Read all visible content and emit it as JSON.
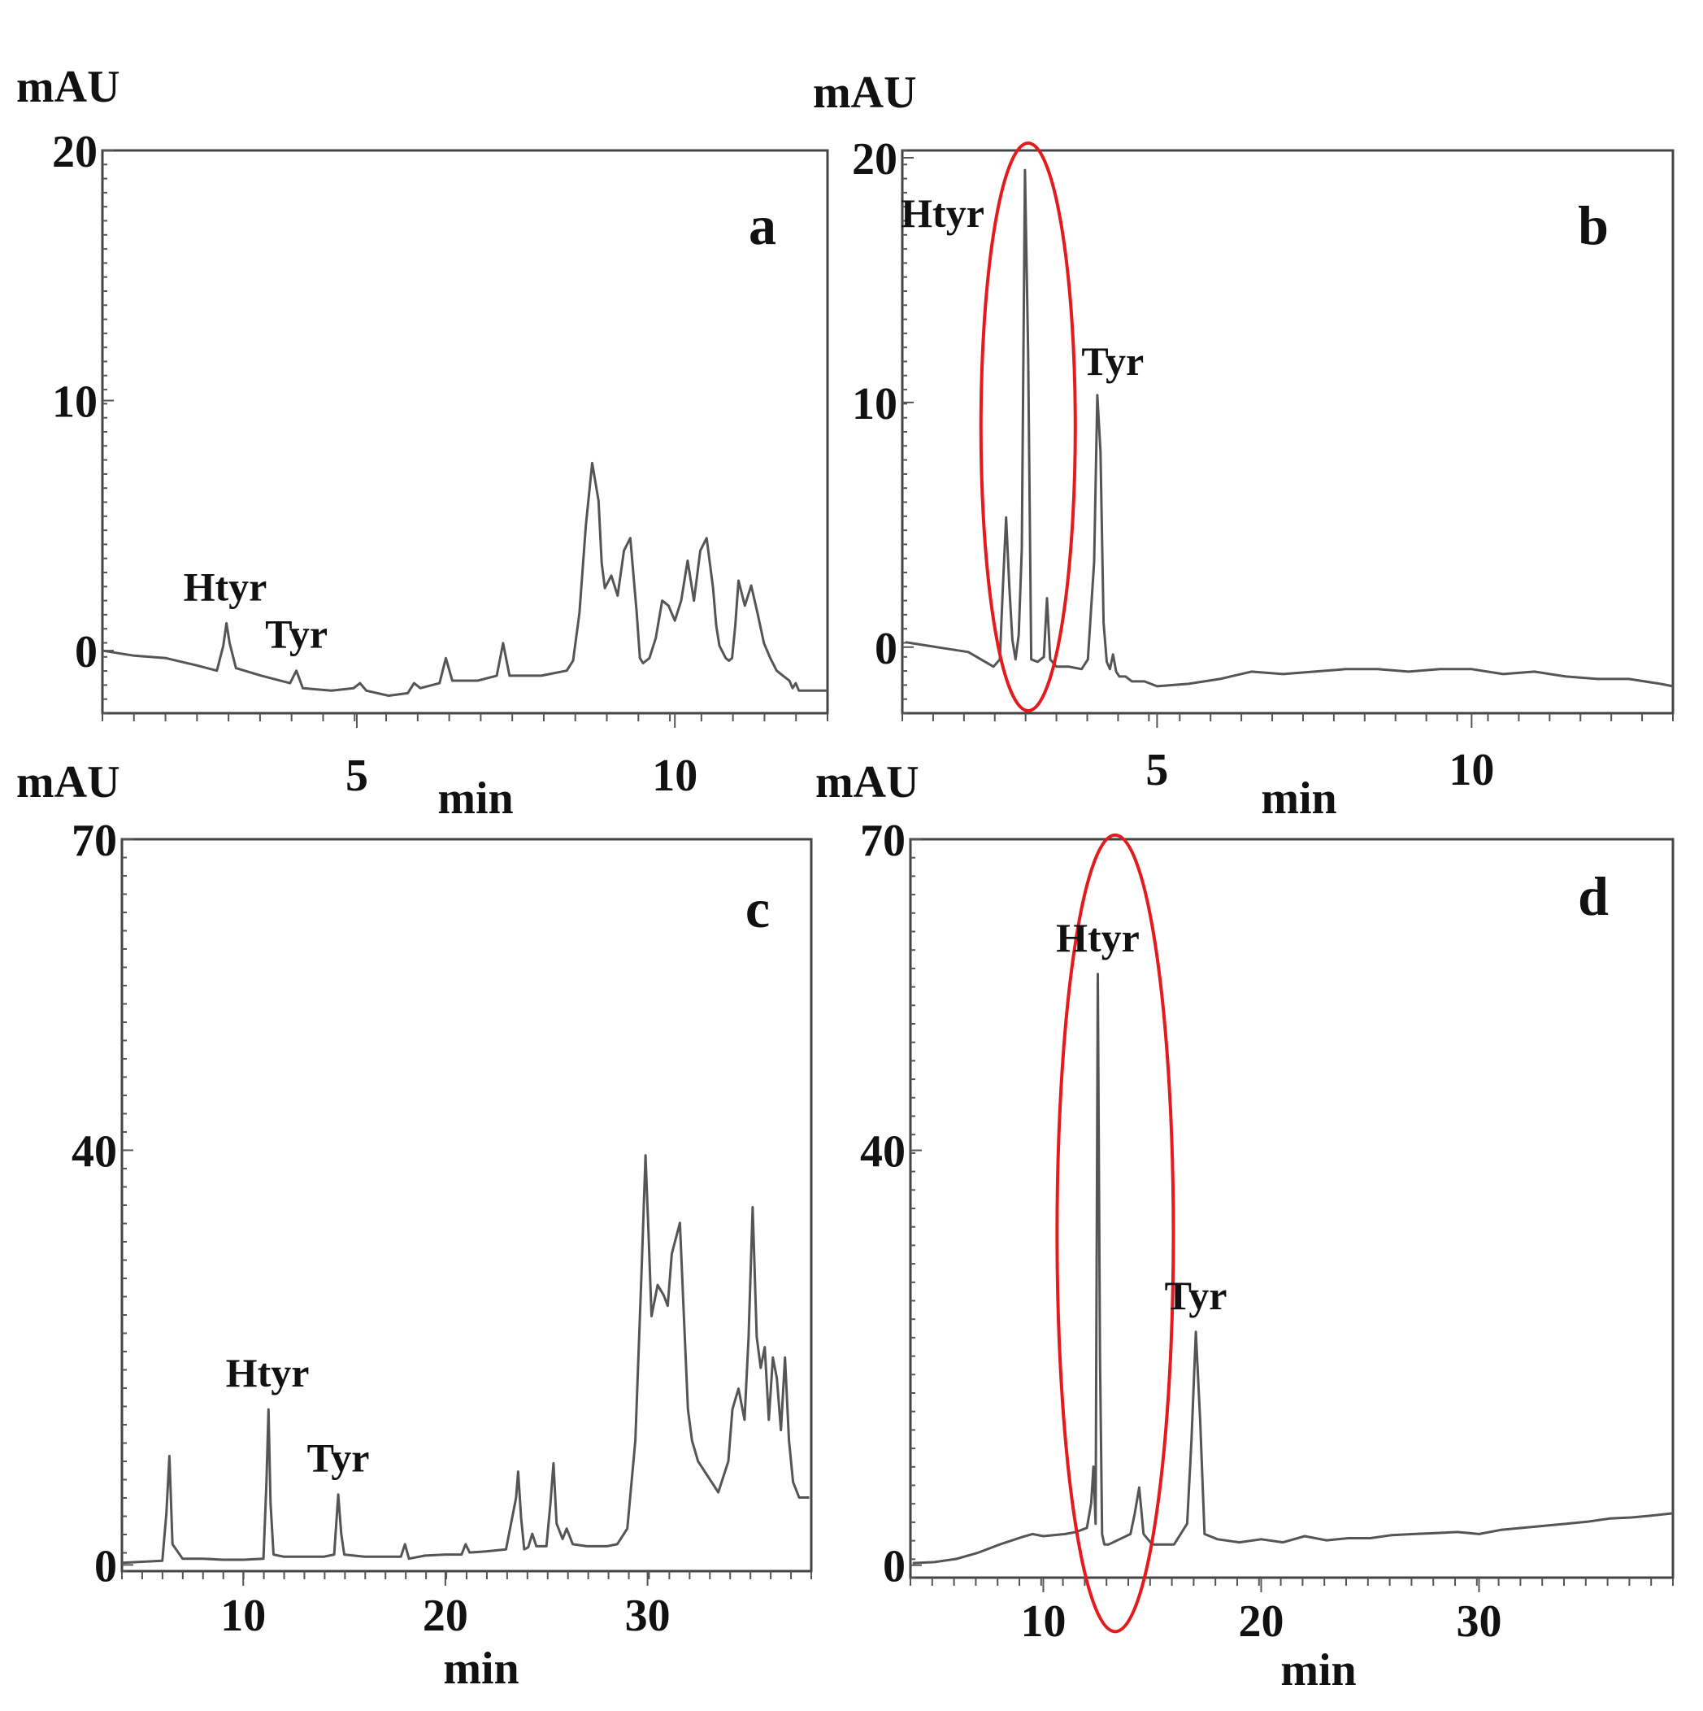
{
  "chart_data": [
    {
      "type": "line",
      "panel": "a",
      "ylabel": "mAU",
      "xlabel": "min",
      "xlim": [
        1,
        12.4
      ],
      "ylim": [
        -2.5,
        20
      ],
      "xticks": [
        5,
        10
      ],
      "yticks": [
        0,
        10,
        20
      ],
      "highlight": null,
      "peaks": [
        {
          "name": "Htyr",
          "x": 2.93,
          "y": 1.1
        },
        {
          "name": "Tyr",
          "x": 4.05,
          "y": -0.8
        }
      ],
      "series": [
        {
          "x": [
            1.0,
            1.5,
            2.0,
            2.5,
            2.8,
            2.9,
            2.95,
            3.0,
            3.1,
            3.5,
            3.95,
            4.05,
            4.15,
            4.6,
            4.95,
            5.05,
            5.15,
            5.5,
            5.8,
            5.9,
            6.0,
            6.3,
            6.4,
            6.5,
            6.9,
            7.2,
            7.3,
            7.4,
            7.6,
            7.9,
            8.3,
            8.4,
            8.5,
            8.6,
            8.7,
            8.8,
            8.85,
            8.9,
            9.0,
            9.1,
            9.2,
            9.3,
            9.4,
            9.45,
            9.5,
            9.6,
            9.7,
            9.8,
            9.9,
            10.0,
            10.1,
            10.2,
            10.3,
            10.4,
            10.5,
            10.6,
            10.65,
            10.7,
            10.8,
            10.85,
            10.9,
            10.95,
            11.0,
            11.1,
            11.2,
            11.3,
            11.4,
            11.5,
            11.6,
            11.7,
            11.8,
            11.85,
            11.9,
            11.95,
            12.0,
            12.1,
            12.2,
            12.3,
            12.4
          ],
          "y": [
            0.0,
            -0.2,
            -0.3,
            -0.6,
            -0.8,
            0.2,
            1.1,
            0.3,
            -0.7,
            -1.0,
            -1.3,
            -0.8,
            -1.5,
            -1.6,
            -1.5,
            -1.3,
            -1.6,
            -1.8,
            -1.7,
            -1.3,
            -1.5,
            -1.3,
            -0.3,
            -1.2,
            -1.2,
            -1.0,
            0.3,
            -1.0,
            -1.0,
            -1.0,
            -0.8,
            -0.4,
            1.5,
            5.0,
            7.5,
            6.0,
            3.5,
            2.5,
            3.0,
            2.2,
            4.0,
            4.5,
            1.5,
            -0.3,
            -0.5,
            -0.3,
            0.5,
            2.0,
            1.8,
            1.2,
            2.0,
            3.6,
            2.0,
            4.0,
            4.5,
            2.5,
            1.0,
            0.2,
            -0.3,
            -0.4,
            -0.3,
            1.0,
            2.8,
            1.8,
            2.6,
            1.5,
            0.3,
            -0.3,
            -0.8,
            -1.0,
            -1.2,
            -1.5,
            -1.3,
            -1.6,
            -1.6,
            -1.6,
            -1.6,
            -1.6,
            -1.6
          ]
        }
      ]
    },
    {
      "type": "line",
      "panel": "b",
      "ylabel": "mAU",
      "xlabel": "min",
      "peaks": [
        {
          "name": "Htyr",
          "x": 2.9,
          "y": 19.5
        },
        {
          "name": "Tyr",
          "x": 4.1,
          "y": 10.3
        }
      ],
      "xlim": [
        0.95,
        13.2
      ],
      "ylim": [
        -2.7,
        20.3
      ],
      "xticks": [
        5,
        10
      ],
      "yticks": [
        0,
        10,
        20
      ],
      "highlight": {
        "cx": 2.95,
        "cy": 9.0,
        "rx": 0.75,
        "ry": 11.6,
        "color": "#e41a1c"
      },
      "series": [
        {
          "x": [
            1.0,
            1.5,
            2.0,
            2.2,
            2.4,
            2.5,
            2.55,
            2.6,
            2.65,
            2.7,
            2.75,
            2.8,
            2.85,
            2.9,
            2.95,
            3.0,
            3.1,
            3.2,
            3.25,
            3.3,
            3.4,
            3.6,
            3.8,
            3.9,
            4.0,
            4.05,
            4.1,
            4.15,
            4.2,
            4.25,
            4.3,
            4.35,
            4.4,
            4.5,
            4.6,
            4.8,
            5.0,
            5.5,
            6.0,
            6.5,
            7.0,
            7.5,
            8.0,
            8.5,
            9.0,
            9.5,
            10.0,
            10.5,
            11.0,
            11.5,
            12.0,
            12.5,
            13.0,
            13.2
          ],
          "y": [
            0.2,
            0.0,
            -0.2,
            -0.5,
            -0.8,
            -0.5,
            2.5,
            5.3,
            2.5,
            0.3,
            -0.5,
            0.5,
            4.0,
            19.5,
            12.0,
            -0.5,
            -0.6,
            -0.4,
            2.0,
            -0.5,
            -0.8,
            -0.8,
            -0.9,
            -0.5,
            3.5,
            10.3,
            8.0,
            1.0,
            -0.6,
            -0.9,
            -0.3,
            -1.0,
            -1.2,
            -1.2,
            -1.4,
            -1.4,
            -1.6,
            -1.5,
            -1.3,
            -1.0,
            -1.1,
            -1.0,
            -0.9,
            -0.9,
            -1.0,
            -0.9,
            -0.9,
            -1.1,
            -1.0,
            -1.2,
            -1.3,
            -1.3,
            -1.5,
            -1.6
          ]
        }
      ]
    },
    {
      "type": "line",
      "panel": "c",
      "ylabel": "mAU",
      "xlabel": "min",
      "peaks": [
        {
          "name": "Htyr",
          "x": 11.2,
          "y": 15.0
        },
        {
          "name": "Tyr",
          "x": 14.7,
          "y": 6.8
        }
      ],
      "xlim": [
        4,
        38.1
      ],
      "ylim": [
        -0.6,
        70
      ],
      "xticks": [
        10,
        20,
        30
      ],
      "yticks": [
        0,
        40,
        70
      ],
      "highlight": null,
      "series": [
        {
          "x": [
            4.0,
            5.0,
            6.0,
            6.2,
            6.35,
            6.5,
            7.0,
            8.0,
            9.0,
            10.0,
            11.0,
            11.15,
            11.25,
            11.35,
            11.5,
            12.0,
            13.0,
            14.0,
            14.5,
            14.7,
            14.85,
            15.0,
            16.0,
            17.0,
            17.8,
            18.0,
            18.2,
            19.0,
            20.0,
            20.8,
            21.0,
            21.2,
            22.0,
            23.0,
            23.5,
            23.6,
            23.75,
            23.9,
            24.1,
            24.3,
            24.5,
            25.0,
            25.2,
            25.35,
            25.5,
            25.8,
            26.0,
            26.3,
            27.0,
            28.0,
            28.5,
            29.0,
            29.4,
            29.7,
            29.9,
            30.05,
            30.2,
            30.5,
            30.8,
            31.0,
            31.2,
            31.6,
            31.8,
            32.0,
            32.2,
            32.5,
            33.0,
            33.5,
            34.0,
            34.2,
            34.5,
            34.8,
            35.0,
            35.2,
            35.4,
            35.6,
            35.8,
            36.0,
            36.2,
            36.4,
            36.6,
            36.8,
            37.0,
            37.2,
            37.5,
            38.0
          ],
          "y": [
            0.2,
            0.3,
            0.4,
            5.0,
            10.5,
            2.0,
            0.6,
            0.6,
            0.5,
            0.5,
            0.6,
            8.0,
            15.0,
            6.0,
            1.0,
            0.8,
            0.8,
            0.8,
            1.0,
            6.8,
            3.0,
            1.0,
            0.8,
            0.8,
            0.8,
            2.0,
            0.6,
            0.9,
            1.0,
            1.0,
            2.0,
            1.2,
            1.3,
            1.5,
            6.5,
            9.0,
            4.5,
            1.5,
            1.7,
            3.0,
            1.8,
            1.8,
            6.0,
            9.8,
            4.0,
            2.5,
            3.5,
            2.0,
            1.8,
            1.8,
            2.0,
            3.5,
            12.0,
            28.0,
            39.5,
            32.0,
            24.0,
            27.0,
            26.0,
            25.0,
            30.0,
            33.0,
            24.0,
            15.0,
            12.0,
            10.0,
            8.5,
            7.0,
            10.0,
            15.0,
            17.0,
            14.0,
            22.0,
            34.5,
            22.0,
            19.0,
            21.0,
            14.0,
            20.0,
            18.0,
            13.0,
            20.0,
            12.0,
            8.0,
            6.5,
            6.5
          ]
        }
      ]
    },
    {
      "type": "line",
      "panel": "d",
      "ylabel": "mAU",
      "xlabel": "min",
      "peaks": [
        {
          "name": "Htyr",
          "x": 12.5,
          "y": 57.0
        },
        {
          "name": "Tyr",
          "x": 17.0,
          "y": 22.5
        }
      ],
      "xlim": [
        3.9,
        38.9
      ],
      "ylim": [
        -1.2,
        70
      ],
      "xticks": [
        10,
        20,
        30
      ],
      "yticks": [
        0,
        40,
        70
      ],
      "highlight": {
        "cx": 13.3,
        "cy": 32.0,
        "rx": 2.67,
        "ry": 38.4,
        "color": "#e41a1c"
      },
      "series": [
        {
          "x": [
            4.0,
            5.0,
            6.0,
            7.0,
            8.0,
            9.0,
            9.5,
            10.0,
            11.0,
            11.5,
            12.0,
            12.2,
            12.3,
            12.4,
            12.5,
            12.6,
            12.7,
            12.8,
            13.0,
            13.5,
            14.0,
            14.2,
            14.4,
            14.6,
            15.0,
            16.0,
            16.6,
            16.8,
            17.0,
            17.2,
            17.4,
            18.0,
            19.0,
            20.0,
            21.0,
            22.0,
            23.0,
            24.0,
            25.0,
            26.0,
            27.0,
            28.0,
            29.0,
            30.0,
            31.0,
            32.0,
            33.0,
            34.0,
            35.0,
            36.0,
            37.0,
            38.0,
            38.9
          ],
          "y": [
            0.2,
            0.3,
            0.6,
            1.2,
            2.0,
            2.7,
            3.0,
            2.8,
            3.0,
            3.2,
            3.6,
            6.0,
            9.5,
            4.0,
            57.0,
            20.0,
            3.0,
            2.0,
            2.0,
            2.5,
            3.0,
            5.0,
            7.5,
            3.0,
            2.0,
            2.0,
            4.0,
            12.0,
            22.5,
            14.0,
            3.0,
            2.5,
            2.2,
            2.5,
            2.2,
            2.8,
            2.4,
            2.6,
            2.6,
            2.9,
            3.0,
            3.1,
            3.2,
            3.0,
            3.4,
            3.6,
            3.8,
            4.0,
            4.2,
            4.5,
            4.6,
            4.8,
            5.0
          ]
        }
      ]
    }
  ]
}
